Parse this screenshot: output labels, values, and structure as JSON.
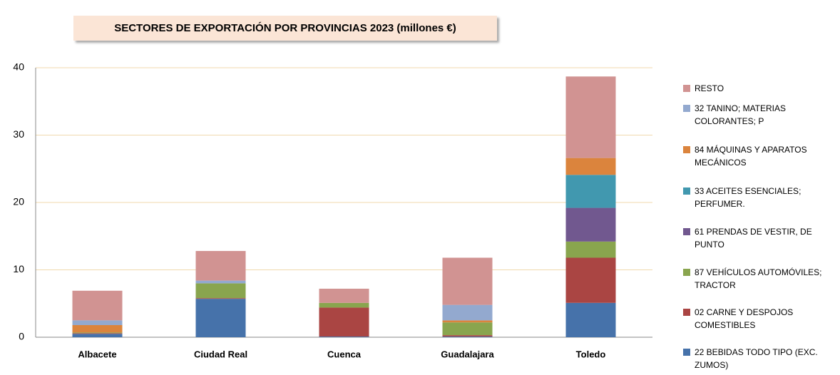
{
  "chart_data": {
    "type": "stacked_bar",
    "title": "SECTORES DE EXPORTACIÓN POR PROVINCIAS 2023 (millones €)",
    "categories": [
      "Albacete",
      "Ciudad Real",
      "Cuenca",
      "Guadalajara",
      "Toledo"
    ],
    "series": [
      {
        "name": "22 BEBIDAS TODO TIPO (EXC. ZUMOS)",
        "color": "#4672aa",
        "values": [
          0.5,
          5.7,
          0.1,
          0.1,
          5.1
        ]
      },
      {
        "name": "02 CARNE Y DESPOJOS COMESTIBLES",
        "color": "#aa4543",
        "values": [
          0.1,
          0.1,
          4.3,
          0.2,
          6.7
        ]
      },
      {
        "name": "87 VEHÍCULOS AUTOMÓVILES; TRACTOR",
        "color": "#89a54e",
        "values": [
          0.1,
          2.2,
          0.7,
          1.9,
          2.4
        ]
      },
      {
        "name": "61 PRENDAS DE VESTIR, DE PUNTO",
        "color": "#71588f",
        "values": [
          0,
          0,
          0,
          0,
          5.0
        ]
      },
      {
        "name": "33 ACEITES ESENCIALES; PERFUMER.",
        "color": "#4198af",
        "values": [
          0,
          0,
          0,
          0,
          4.9
        ]
      },
      {
        "name": "84 MÁQUINAS Y APARATOS MECÁNICOS",
        "color": "#db843d",
        "values": [
          1.1,
          0,
          0,
          0.3,
          2.5
        ]
      },
      {
        "name": "32 TANINO; MATERIAS COLORANTES; P",
        "color": "#93a9cf",
        "values": [
          0.7,
          0.4,
          0,
          2.3,
          0
        ]
      },
      {
        "name": "RESTO",
        "color": "#d19392",
        "values": [
          4.4,
          4.4,
          2.1,
          7.0,
          12.1
        ]
      }
    ],
    "ylim": [
      0,
      40
    ],
    "yticks": [
      0,
      10,
      20,
      30,
      40
    ],
    "grid": true
  }
}
